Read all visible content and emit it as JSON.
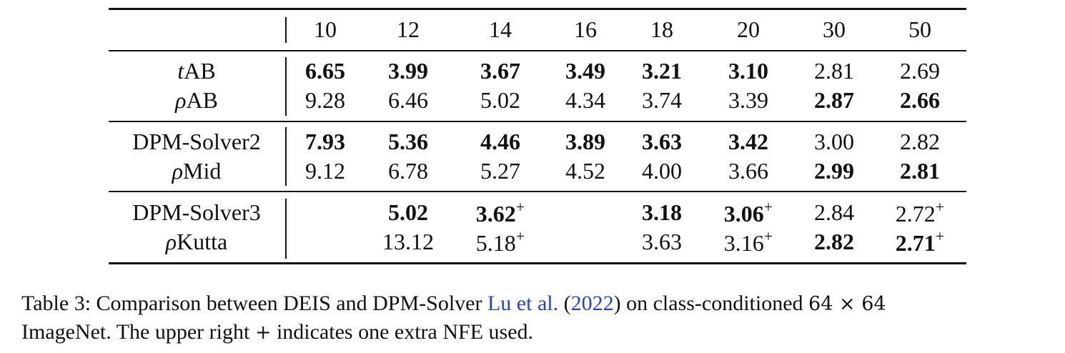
{
  "table": {
    "columns": [
      "10",
      "12",
      "14",
      "16",
      "18",
      "20",
      "30",
      "50"
    ],
    "groups": [
      [
        {
          "method": {
            "symbol": "t",
            "name": "AB"
          },
          "cells": [
            {
              "text": "6.65",
              "bold": true
            },
            {
              "text": "3.99",
              "bold": true
            },
            {
              "text": "3.67",
              "bold": true
            },
            {
              "text": "3.49",
              "bold": true
            },
            {
              "text": "3.21",
              "bold": true
            },
            {
              "text": "3.10",
              "bold": true
            },
            {
              "text": "2.81",
              "bold": false
            },
            {
              "text": "2.69",
              "bold": false
            }
          ]
        },
        {
          "method": {
            "symbol": "ρ",
            "name": "AB"
          },
          "cells": [
            {
              "text": "9.28",
              "bold": false
            },
            {
              "text": "6.46",
              "bold": false
            },
            {
              "text": "5.02",
              "bold": false
            },
            {
              "text": "4.34",
              "bold": false
            },
            {
              "text": "3.74",
              "bold": false
            },
            {
              "text": "3.39",
              "bold": false
            },
            {
              "text": "2.87",
              "bold": true
            },
            {
              "text": "2.66",
              "bold": true
            }
          ]
        }
      ],
      [
        {
          "method": {
            "name": "DPM-Solver2"
          },
          "cells": [
            {
              "text": "7.93",
              "bold": true
            },
            {
              "text": "5.36",
              "bold": true
            },
            {
              "text": "4.46",
              "bold": true
            },
            {
              "text": "3.89",
              "bold": true
            },
            {
              "text": "3.63",
              "bold": true
            },
            {
              "text": "3.42",
              "bold": true
            },
            {
              "text": "3.00",
              "bold": false
            },
            {
              "text": "2.82",
              "bold": false
            }
          ]
        },
        {
          "method": {
            "symbol": "ρ",
            "name": "Mid"
          },
          "cells": [
            {
              "text": "9.12",
              "bold": false
            },
            {
              "text": "6.78",
              "bold": false
            },
            {
              "text": "5.27",
              "bold": false
            },
            {
              "text": "4.52",
              "bold": false
            },
            {
              "text": "4.00",
              "bold": false
            },
            {
              "text": "3.66",
              "bold": false
            },
            {
              "text": "2.99",
              "bold": true
            },
            {
              "text": "2.81",
              "bold": true
            }
          ]
        }
      ],
      [
        {
          "method": {
            "name": "DPM-Solver3"
          },
          "cells": [
            null,
            {
              "text": "5.02",
              "bold": true
            },
            {
              "text": "3.62",
              "bold": true,
              "mark": "+"
            },
            null,
            {
              "text": "3.18",
              "bold": true
            },
            {
              "text": "3.06",
              "bold": true,
              "mark": "+"
            },
            {
              "text": "2.84",
              "bold": false
            },
            {
              "text": "2.72",
              "bold": false,
              "mark": "+"
            }
          ]
        },
        {
          "method": {
            "symbol": "ρ",
            "name": "Kutta"
          },
          "cells": [
            null,
            {
              "text": "13.12",
              "bold": false
            },
            {
              "text": "5.18",
              "bold": false,
              "mark": "+"
            },
            null,
            {
              "text": "3.63",
              "bold": false
            },
            {
              "text": "3.16",
              "bold": false,
              "mark": "+"
            },
            {
              "text": "2.82",
              "bold": true
            },
            {
              "text": "2.71",
              "bold": true,
              "mark": "+"
            }
          ]
        }
      ]
    ]
  },
  "caption": [
    [
      {
        "text": "Table 3: Comparison between DEIS and DPM-Solver "
      },
      {
        "text": "Lu et al.",
        "link": true
      },
      {
        "text": " ("
      },
      {
        "text": "2022",
        "link": true
      },
      {
        "text": ") on class-conditioned "
      },
      {
        "text": "64 × 64",
        "math": true
      }
    ],
    [
      {
        "text": "ImageNet. The upper right "
      },
      {
        "text": "+",
        "math": true
      },
      {
        "text": " indicates one extra NFE used."
      }
    ]
  ]
}
